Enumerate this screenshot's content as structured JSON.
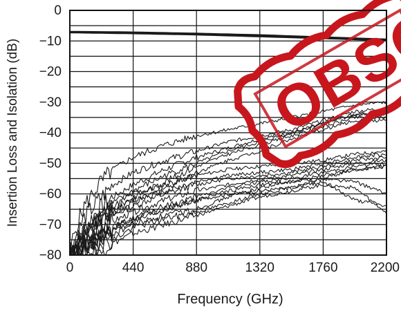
{
  "chart_data": {
    "type": "line",
    "title": "",
    "xlabel": "Frequency (GHz)",
    "ylabel": "Insertion Loss and Isolation (dB)",
    "xlim": [
      0,
      2200
    ],
    "ylim": [
      -80,
      0
    ],
    "grid": true,
    "x_ticks": [
      "0",
      "440",
      "880",
      "1320",
      "1760",
      "2200"
    ],
    "y_ticks": [
      "0",
      "−10",
      "−20",
      "−30",
      "−40",
      "−50",
      "−60",
      "−70",
      "−80"
    ],
    "series": [
      {
        "role": "insertion-loss",
        "x": [
          0,
          440,
          880,
          1320,
          1760,
          2200
        ],
        "values": [
          -7,
          -7.2,
          -7.6,
          -8.1,
          -8.8,
          -9.5
        ]
      },
      {
        "role": "insertion-loss",
        "x": [
          0,
          440,
          880,
          1320,
          1760,
          2200
        ],
        "values": [
          -7.2,
          -7.5,
          -7.9,
          -8.5,
          -9.1,
          -9.8
        ]
      },
      {
        "role": "isolation",
        "x": [
          0,
          50,
          100,
          200,
          300,
          440,
          660,
          880,
          1100,
          1320,
          1540,
          1760,
          1980,
          2200
        ],
        "values": [
          -78,
          -70,
          -64,
          -57,
          -52,
          -48,
          -44,
          -41,
          -39,
          -37,
          -35,
          -33,
          -31,
          -30
        ]
      },
      {
        "role": "isolation",
        "x": [
          0,
          50,
          100,
          200,
          300,
          440,
          660,
          880,
          1100,
          1320,
          1540,
          1760,
          1980,
          2200
        ],
        "values": [
          -79,
          -73,
          -68,
          -62,
          -57,
          -53,
          -49,
          -46,
          -43,
          -41,
          -39,
          -36,
          -33,
          -32
        ]
      },
      {
        "role": "isolation",
        "x": [
          0,
          50,
          100,
          200,
          300,
          440,
          660,
          880,
          1100,
          1320,
          1540,
          1760,
          1980,
          2200
        ],
        "values": [
          -80,
          -75,
          -71,
          -65,
          -61,
          -57,
          -52,
          -48,
          -45,
          -42,
          -40,
          -37,
          -34,
          -33
        ]
      },
      {
        "role": "isolation",
        "x": [
          0,
          50,
          100,
          200,
          300,
          440,
          660,
          880,
          1100,
          1320,
          1540,
          1760,
          1980,
          2200
        ],
        "values": [
          -79,
          -76,
          -72,
          -67,
          -63,
          -59,
          -54,
          -50,
          -46,
          -43,
          -40,
          -37,
          -34,
          -34
        ]
      },
      {
        "role": "isolation",
        "x": [
          0,
          50,
          100,
          200,
          300,
          440,
          660,
          880,
          1100,
          1320,
          1540,
          1760,
          1980,
          2200
        ],
        "values": [
          -80,
          -77,
          -74,
          -69,
          -65,
          -61,
          -56,
          -51,
          -47,
          -44,
          -41,
          -38,
          -35,
          -35
        ]
      },
      {
        "role": "isolation",
        "x": [
          0,
          50,
          100,
          200,
          300,
          440,
          660,
          880,
          1100,
          1320,
          1540,
          1760,
          1980,
          2200
        ],
        "values": [
          -80,
          -78,
          -75,
          -71,
          -67,
          -63,
          -58,
          -53,
          -49,
          -46,
          -42,
          -39,
          -36,
          -36
        ]
      },
      {
        "role": "isolation",
        "x": [
          0,
          50,
          100,
          200,
          300,
          440,
          660,
          880,
          1100,
          1320,
          1540,
          1760,
          1980,
          2200
        ],
        "values": [
          -80,
          -76,
          -73,
          -68,
          -64,
          -60,
          -57,
          -54,
          -52,
          -51,
          -50,
          -49,
          -47,
          -46
        ]
      },
      {
        "role": "isolation",
        "x": [
          0,
          50,
          100,
          200,
          300,
          440,
          660,
          880,
          1100,
          1320,
          1540,
          1760,
          1980,
          2200
        ],
        "values": [
          -80,
          -77,
          -74,
          -70,
          -66,
          -62,
          -59,
          -56,
          -54,
          -53,
          -52,
          -50,
          -48,
          -47
        ]
      },
      {
        "role": "isolation",
        "x": [
          0,
          50,
          100,
          200,
          300,
          440,
          660,
          880,
          1100,
          1320,
          1540,
          1760,
          1980,
          2200
        ],
        "values": [
          -80,
          -78,
          -75,
          -71,
          -67,
          -64,
          -60,
          -57,
          -55,
          -54,
          -53,
          -51,
          -49,
          -48
        ]
      },
      {
        "role": "isolation",
        "x": [
          0,
          50,
          100,
          200,
          300,
          440,
          660,
          880,
          1100,
          1320,
          1540,
          1760,
          1980,
          2200
        ],
        "values": [
          -80,
          -79,
          -77,
          -73,
          -69,
          -66,
          -62,
          -59,
          -57,
          -55,
          -54,
          -52,
          -50,
          -49
        ]
      },
      {
        "role": "isolation",
        "x": [
          0,
          50,
          100,
          200,
          300,
          440,
          660,
          880,
          1100,
          1320,
          1540,
          1760,
          1980,
          2200
        ],
        "values": [
          -80,
          -79,
          -77,
          -74,
          -71,
          -68,
          -64,
          -61,
          -58,
          -56,
          -55,
          -53,
          -51,
          -50
        ]
      },
      {
        "role": "isolation",
        "x": [
          0,
          50,
          100,
          200,
          300,
          440,
          660,
          880,
          1100,
          1320,
          1540,
          1760,
          1980,
          2200
        ],
        "values": [
          -80,
          -80,
          -78,
          -75,
          -72,
          -69,
          -65,
          -62,
          -59,
          -57,
          -56,
          -54,
          -52,
          -51
        ]
      },
      {
        "role": "isolation",
        "x": [
          0,
          50,
          100,
          200,
          300,
          440,
          660,
          880,
          1100,
          1320,
          1540,
          1760,
          1980,
          2200
        ],
        "values": [
          -80,
          -79,
          -77,
          -74,
          -71,
          -68,
          -65,
          -62,
          -60,
          -59,
          -58,
          -55,
          -52,
          -51
        ]
      },
      {
        "role": "isolation",
        "x": [
          0,
          50,
          100,
          200,
          300,
          440,
          660,
          880,
          1100,
          1320,
          1540,
          1760,
          1980,
          2200
        ],
        "values": [
          -80,
          -80,
          -78,
          -76,
          -73,
          -70,
          -67,
          -65,
          -61,
          -58,
          -56,
          -55,
          -56,
          -60
        ]
      },
      {
        "role": "isolation",
        "x": [
          0,
          50,
          100,
          200,
          300,
          440,
          660,
          880,
          1100,
          1320,
          1540,
          1760,
          1980,
          2200
        ],
        "values": [
          -80,
          -80,
          -79,
          -77,
          -75,
          -71,
          -68,
          -66,
          -63,
          -60,
          -58,
          -56,
          -62,
          -64
        ]
      },
      {
        "role": "isolation",
        "x": [
          0,
          50,
          100,
          200,
          300,
          440,
          660,
          880,
          1100,
          1320,
          1540,
          1760,
          1980,
          2200
        ],
        "values": [
          -80,
          -80,
          -80,
          -78,
          -76,
          -73,
          -70,
          -67,
          -64,
          -61,
          -59,
          -57,
          -58,
          -66
        ]
      }
    ],
    "colors": {
      "lines": "#1a1a1a",
      "grid": "#111111",
      "stamp": "#c8161d"
    },
    "watermark": {
      "text": "OBSOLETE",
      "style": "red-stamp",
      "partially_visible": true
    }
  }
}
